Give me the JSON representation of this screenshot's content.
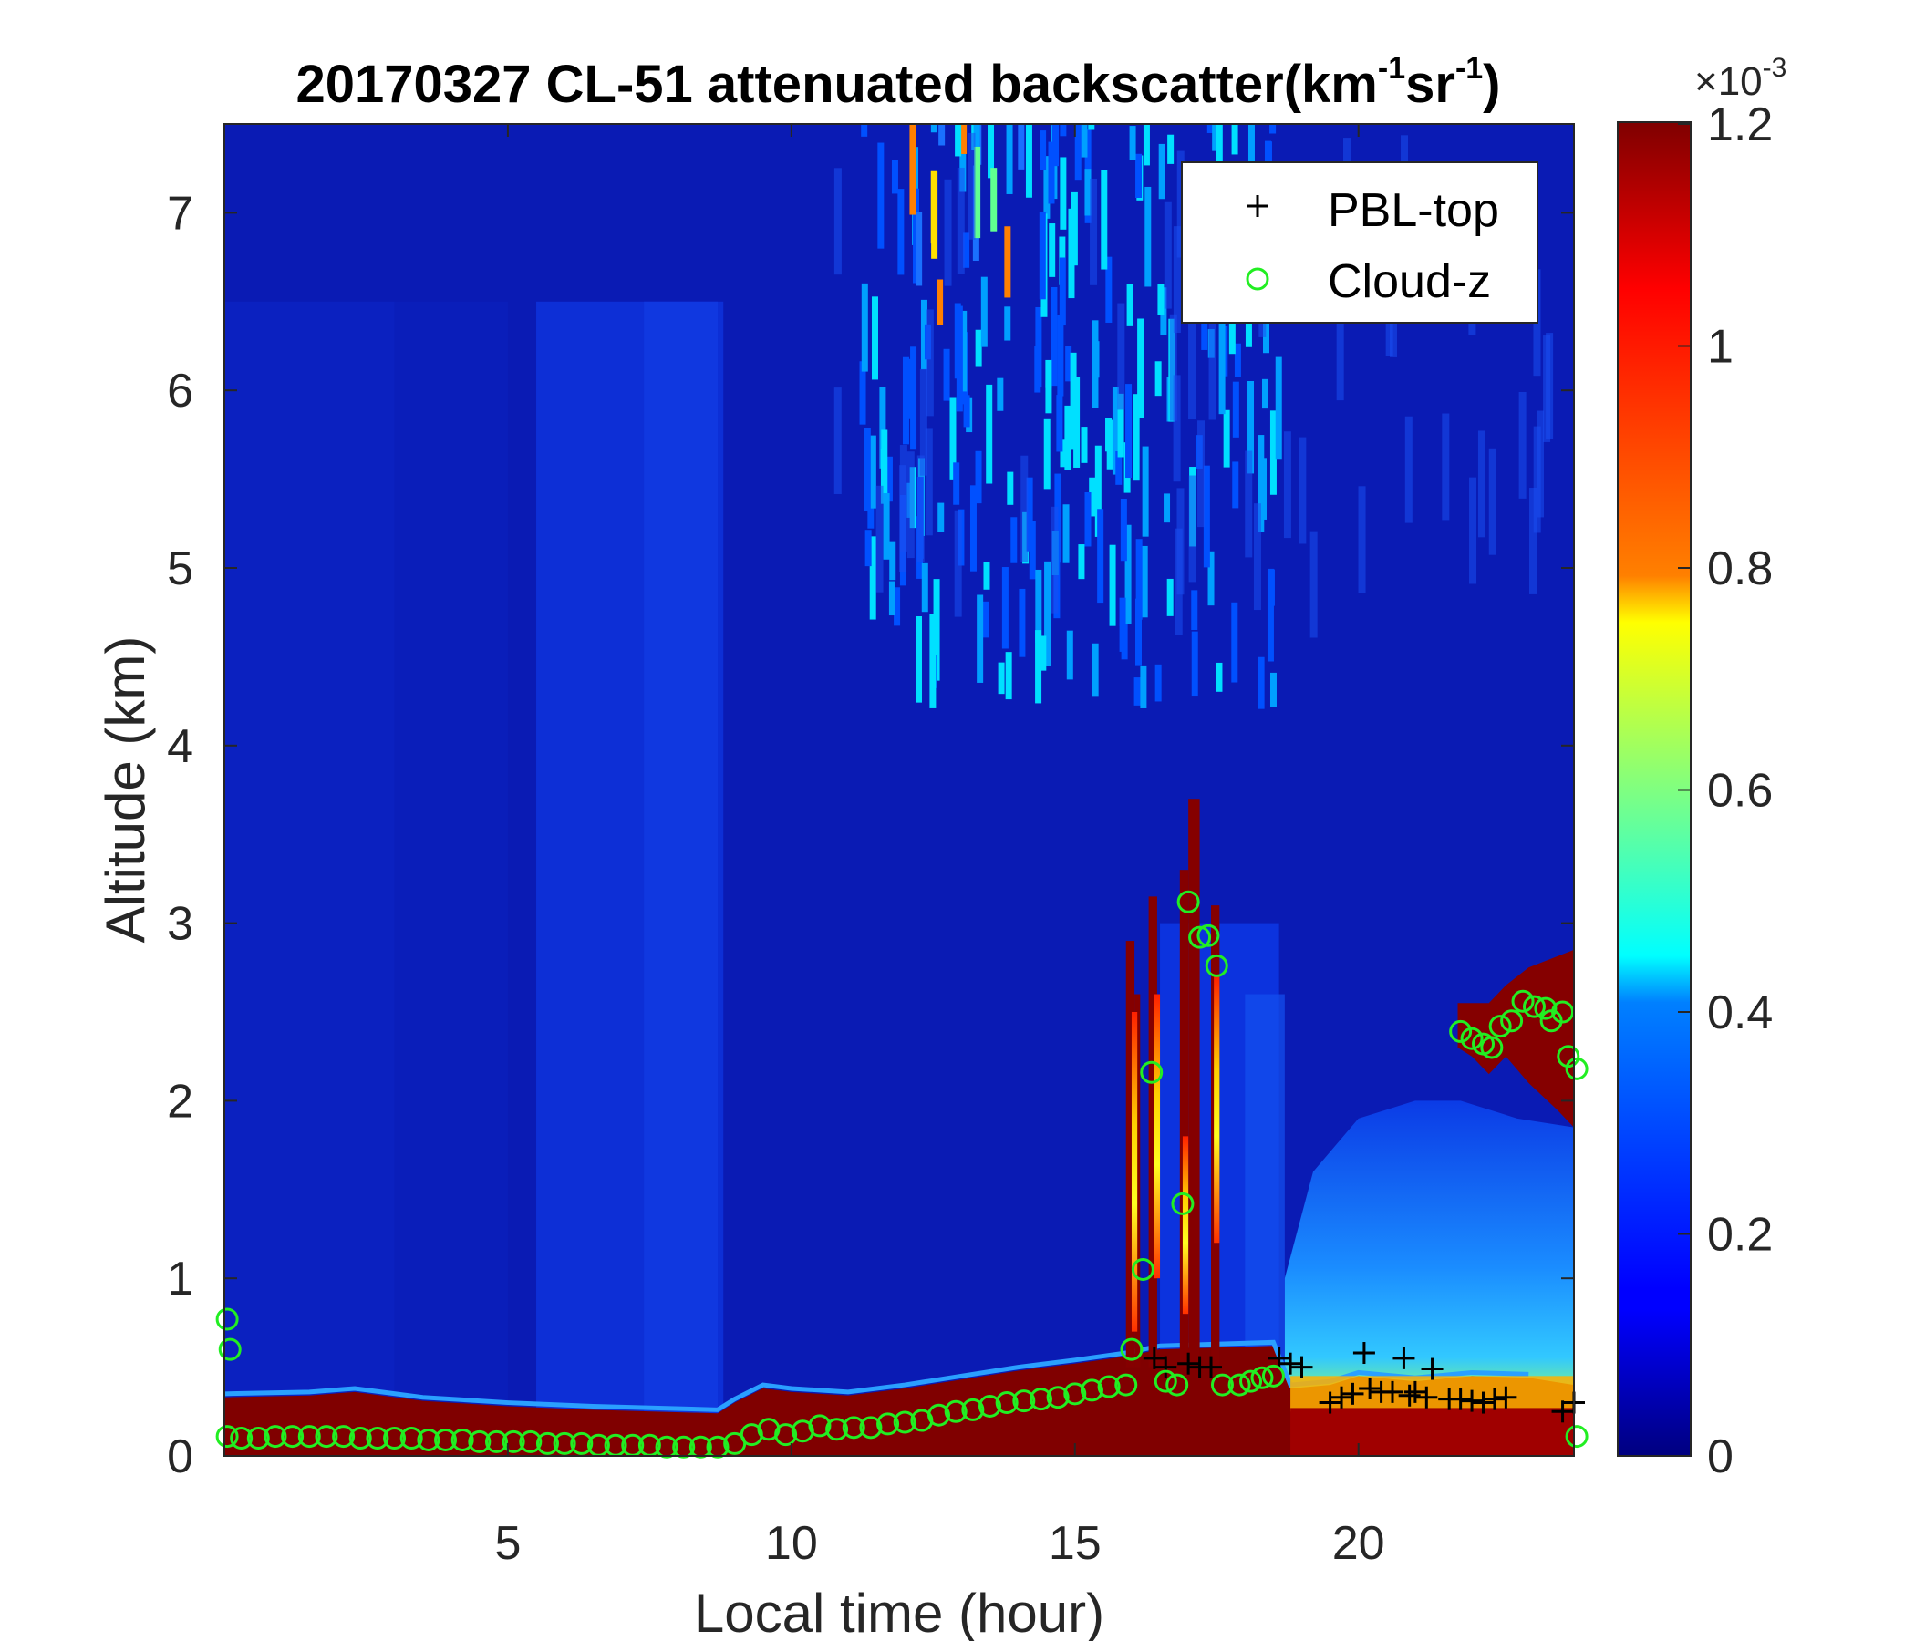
{
  "chart_data": {
    "type": "heatmap",
    "title": "20170327  CL-51 attenuated backscatter(km-1sr-1)",
    "title_parts": {
      "main": "20170327  CL-51 attenuated backscatter(km",
      "sup1": "-1",
      "mid": "sr",
      "sup2": "-1",
      "close": ")"
    },
    "xlabel": "Local time (hour)",
    "ylabel": "Altitude (km)",
    "xlim": [
      0,
      23.8
    ],
    "ylim": [
      0,
      7.5
    ],
    "xticks": [
      5,
      10,
      15,
      20
    ],
    "yticks": [
      0,
      1,
      2,
      3,
      4,
      5,
      6,
      7
    ],
    "colormap": "jet",
    "colorbar": {
      "range": [
        0,
        1.2
      ],
      "ticks": [
        0,
        0.2,
        0.4,
        0.6,
        0.8,
        1,
        1.2
      ],
      "exponent_base": "×10",
      "exponent": "-3"
    },
    "legend": {
      "placement": "top-right",
      "entries": [
        {
          "label": "PBL-top",
          "marker": "+",
          "color": "#000000"
        },
        {
          "label": "Cloud-z",
          "marker": "o",
          "color": "#22ee22"
        }
      ]
    },
    "series": [
      {
        "name": "PBL-top",
        "points": [
          [
            16.4,
            0.55
          ],
          [
            16.6,
            0.5
          ],
          [
            17.0,
            0.52
          ],
          [
            17.2,
            0.5
          ],
          [
            17.4,
            0.5
          ],
          [
            18.6,
            0.55
          ],
          [
            18.8,
            0.52
          ],
          [
            19.0,
            0.5
          ],
          [
            19.5,
            0.3
          ],
          [
            19.7,
            0.33
          ],
          [
            19.9,
            0.35
          ],
          [
            20.1,
            0.58
          ],
          [
            20.2,
            0.38
          ],
          [
            20.4,
            0.36
          ],
          [
            20.6,
            0.36
          ],
          [
            20.8,
            0.55
          ],
          [
            20.9,
            0.34
          ],
          [
            21.0,
            0.36
          ],
          [
            21.2,
            0.33
          ],
          [
            21.3,
            0.49
          ],
          [
            21.6,
            0.32
          ],
          [
            21.8,
            0.32
          ],
          [
            22.0,
            0.31
          ],
          [
            22.2,
            0.3
          ],
          [
            22.4,
            0.32
          ],
          [
            22.6,
            0.33
          ],
          [
            23.6,
            0.25
          ],
          [
            23.8,
            0.3
          ]
        ]
      },
      {
        "name": "Cloud-z",
        "points": [
          [
            0.05,
            0.77
          ],
          [
            0.1,
            0.6
          ],
          [
            0.05,
            0.11
          ],
          [
            0.3,
            0.1
          ],
          [
            0.6,
            0.1
          ],
          [
            0.9,
            0.11
          ],
          [
            1.2,
            0.11
          ],
          [
            1.5,
            0.11
          ],
          [
            1.8,
            0.11
          ],
          [
            2.1,
            0.11
          ],
          [
            2.4,
            0.1
          ],
          [
            2.7,
            0.1
          ],
          [
            3.0,
            0.1
          ],
          [
            3.3,
            0.1
          ],
          [
            3.6,
            0.09
          ],
          [
            3.9,
            0.09
          ],
          [
            4.2,
            0.09
          ],
          [
            4.5,
            0.08
          ],
          [
            4.8,
            0.08
          ],
          [
            5.1,
            0.08
          ],
          [
            5.4,
            0.08
          ],
          [
            5.7,
            0.07
          ],
          [
            6.0,
            0.07
          ],
          [
            6.3,
            0.07
          ],
          [
            6.6,
            0.06
          ],
          [
            6.9,
            0.06
          ],
          [
            7.2,
            0.06
          ],
          [
            7.5,
            0.06
          ],
          [
            7.8,
            0.05
          ],
          [
            8.1,
            0.05
          ],
          [
            8.4,
            0.05
          ],
          [
            8.7,
            0.05
          ],
          [
            9.0,
            0.07
          ],
          [
            9.3,
            0.12
          ],
          [
            9.6,
            0.15
          ],
          [
            9.9,
            0.12
          ],
          [
            10.2,
            0.14
          ],
          [
            10.5,
            0.17
          ],
          [
            10.8,
            0.15
          ],
          [
            11.1,
            0.16
          ],
          [
            11.4,
            0.16
          ],
          [
            11.7,
            0.18
          ],
          [
            12.0,
            0.19
          ],
          [
            12.3,
            0.2
          ],
          [
            12.6,
            0.23
          ],
          [
            12.9,
            0.25
          ],
          [
            13.2,
            0.26
          ],
          [
            13.5,
            0.28
          ],
          [
            13.8,
            0.3
          ],
          [
            14.1,
            0.31
          ],
          [
            14.4,
            0.32
          ],
          [
            14.7,
            0.33
          ],
          [
            15.0,
            0.35
          ],
          [
            15.3,
            0.37
          ],
          [
            15.6,
            0.39
          ],
          [
            15.9,
            0.4
          ],
          [
            16.0,
            0.6
          ],
          [
            16.2,
            1.05
          ],
          [
            16.35,
            2.16
          ],
          [
            16.6,
            0.42
          ],
          [
            16.8,
            0.4
          ],
          [
            16.9,
            1.42
          ],
          [
            17.0,
            3.12
          ],
          [
            17.2,
            2.92
          ],
          [
            17.35,
            2.93
          ],
          [
            17.5,
            2.76
          ],
          [
            17.6,
            0.4
          ],
          [
            17.9,
            0.4
          ],
          [
            18.1,
            0.42
          ],
          [
            18.3,
            0.44
          ],
          [
            18.5,
            0.45
          ],
          [
            21.8,
            2.39
          ],
          [
            22.0,
            2.35
          ],
          [
            22.2,
            2.32
          ],
          [
            22.35,
            2.3
          ],
          [
            22.5,
            2.42
          ],
          [
            22.7,
            2.45
          ],
          [
            22.9,
            2.56
          ],
          [
            23.1,
            2.53
          ],
          [
            23.3,
            2.52
          ],
          [
            23.4,
            2.45
          ],
          [
            23.6,
            2.5
          ],
          [
            23.7,
            2.25
          ],
          [
            23.85,
            2.18
          ],
          [
            23.85,
            0.11
          ]
        ]
      }
    ]
  }
}
